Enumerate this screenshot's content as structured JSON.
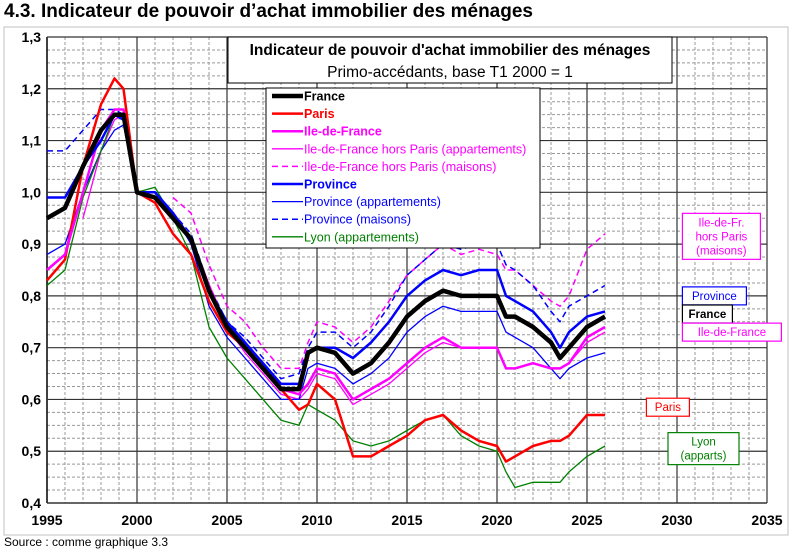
{
  "heading": "4.3. Indicateur de pouvoir d’achat immobilier des ménages",
  "source": "Source : comme graphique 3.3",
  "chart_data": {
    "type": "line",
    "title": "Indicateur de pouvoir d'achat immobilier des ménages",
    "subtitle": "Primo-accédants, base T1 2000 = 1",
    "xlim": [
      1995,
      2035
    ],
    "ylim": [
      0.4,
      1.3
    ],
    "xticks": [
      1995,
      2000,
      2005,
      2010,
      2015,
      2020,
      2025,
      2030,
      2035
    ],
    "yticks": [
      "0,4",
      "0,5",
      "0,6",
      "0,7",
      "0,8",
      "0,9",
      "1,0",
      "1,1",
      "1,2",
      "1,3"
    ],
    "grid": true,
    "legend_placement": "top-center",
    "x": [
      1995,
      1996,
      1997,
      1998,
      1998.75,
      1999.25,
      2000,
      2001,
      2002,
      2003,
      2004,
      2005,
      2006,
      2007,
      2008,
      2009,
      2009.5,
      2010,
      2011,
      2012,
      2013,
      2014,
      2015,
      2016,
      2017,
      2018,
      2019,
      2020,
      2020.5,
      2021,
      2022,
      2023,
      2023.5,
      2024,
      2025,
      2026
    ],
    "series": [
      {
        "name": "France",
        "color": "#000000",
        "style": "thick",
        "values": [
          0.95,
          0.97,
          1.05,
          1.12,
          1.15,
          1.15,
          1.0,
          0.99,
          0.95,
          0.91,
          0.81,
          0.74,
          0.7,
          0.66,
          0.62,
          0.62,
          0.69,
          0.7,
          0.69,
          0.65,
          0.67,
          0.71,
          0.76,
          0.79,
          0.81,
          0.8,
          0.8,
          0.8,
          0.76,
          0.76,
          0.74,
          0.71,
          0.68,
          0.7,
          0.74,
          0.76
        ]
      },
      {
        "name": "Paris",
        "color": "#ff0000",
        "style": "medium",
        "values": [
          0.83,
          0.87,
          1.05,
          1.17,
          1.22,
          1.2,
          1.0,
          0.98,
          0.92,
          0.88,
          0.79,
          0.73,
          0.7,
          0.66,
          0.62,
          0.58,
          0.59,
          0.63,
          0.6,
          0.49,
          0.49,
          0.51,
          0.53,
          0.56,
          0.57,
          0.54,
          0.52,
          0.51,
          0.48,
          0.49,
          0.51,
          0.52,
          0.52,
          0.53,
          0.57,
          0.57
        ]
      },
      {
        "name": "Ile-de-France",
        "color": "#ff00ff",
        "style": "medium",
        "values": [
          0.85,
          0.88,
          1.0,
          1.12,
          1.16,
          1.16,
          1.0,
          0.99,
          0.95,
          0.91,
          0.82,
          0.74,
          0.7,
          0.66,
          0.62,
          0.61,
          0.63,
          0.66,
          0.65,
          0.6,
          0.62,
          0.64,
          0.67,
          0.7,
          0.72,
          0.7,
          0.7,
          0.7,
          0.66,
          0.66,
          0.67,
          0.66,
          0.66,
          0.67,
          0.72,
          0.74
        ]
      },
      {
        "name": "Ile-de-France hors Paris (appartements)",
        "color": "#ff00ff",
        "style": "thin",
        "values": [
          null,
          null,
          0.95,
          1.08,
          1.14,
          1.15,
          1.0,
          0.99,
          0.95,
          0.91,
          0.82,
          0.74,
          0.69,
          0.65,
          0.61,
          0.6,
          0.62,
          0.65,
          0.64,
          0.59,
          0.61,
          0.63,
          0.66,
          0.69,
          0.71,
          0.7,
          0.7,
          0.7,
          0.66,
          0.66,
          0.67,
          0.66,
          0.66,
          0.67,
          0.71,
          0.73
        ]
      },
      {
        "name": "Ile-de-France hors Paris (maisons)",
        "color": "#ff00ff",
        "style": "dashed",
        "values": [
          null,
          null,
          null,
          null,
          null,
          null,
          null,
          null,
          0.99,
          0.96,
          0.86,
          0.78,
          0.75,
          0.7,
          0.66,
          0.66,
          0.71,
          0.75,
          0.74,
          0.71,
          0.74,
          0.79,
          0.84,
          0.87,
          0.9,
          0.88,
          0.89,
          0.88,
          0.85,
          0.85,
          0.82,
          0.79,
          0.78,
          0.8,
          0.89,
          0.92
        ]
      },
      {
        "name": "Province",
        "color": "#0000ff",
        "style": "medium",
        "values": [
          0.99,
          0.99,
          1.05,
          1.1,
          1.15,
          1.14,
          1.0,
          1.0,
          0.96,
          0.91,
          0.81,
          0.75,
          0.71,
          0.67,
          0.63,
          0.63,
          0.69,
          0.7,
          0.7,
          0.68,
          0.71,
          0.75,
          0.8,
          0.83,
          0.85,
          0.84,
          0.85,
          0.85,
          0.8,
          0.79,
          0.77,
          0.73,
          0.7,
          0.73,
          0.76,
          0.77
        ]
      },
      {
        "name": "Province (appartements)",
        "color": "#0000ff",
        "style": "thin",
        "values": [
          0.88,
          0.9,
          1.0,
          1.08,
          1.12,
          1.13,
          1.0,
          1.0,
          0.96,
          0.9,
          0.78,
          0.72,
          0.68,
          0.64,
          0.6,
          0.6,
          0.66,
          0.67,
          0.66,
          0.63,
          0.65,
          0.68,
          0.73,
          0.76,
          0.78,
          0.77,
          0.77,
          0.77,
          0.73,
          0.72,
          0.7,
          0.66,
          0.64,
          0.66,
          0.68,
          0.69
        ]
      },
      {
        "name": "Province (maisons)",
        "color": "#0000ff",
        "style": "dashed",
        "values": [
          1.08,
          1.08,
          1.12,
          1.16,
          1.16,
          1.15,
          1.0,
          1.0,
          0.96,
          0.92,
          0.82,
          0.75,
          0.72,
          0.68,
          0.64,
          0.65,
          0.7,
          0.73,
          0.73,
          0.7,
          0.73,
          0.78,
          0.84,
          0.87,
          0.9,
          0.89,
          0.9,
          0.9,
          0.86,
          0.85,
          0.82,
          0.77,
          0.75,
          0.78,
          0.8,
          0.82
        ]
      },
      {
        "name": "Lyon (appartements)",
        "color": "#008000",
        "style": "thin",
        "values": [
          0.82,
          0.85,
          0.99,
          1.08,
          1.15,
          1.14,
          1.0,
          1.01,
          0.95,
          0.88,
          0.74,
          0.68,
          0.64,
          0.6,
          0.56,
          0.55,
          0.59,
          0.58,
          0.56,
          0.52,
          0.51,
          0.52,
          0.54,
          0.56,
          0.57,
          0.53,
          0.51,
          0.5,
          0.46,
          0.43,
          0.44,
          0.44,
          0.44,
          0.46,
          0.49,
          0.51
        ]
      }
    ],
    "annotations": [
      {
        "lines": [
          "Ile-de-Fr.",
          "hors Paris",
          "(maisons)"
        ],
        "color": "#ff00ff",
        "bold": false,
        "at": [
          2030.3,
          0.915
        ]
      },
      {
        "lines": [
          "Province"
        ],
        "color": "#0000ff",
        "bold": false,
        "at": [
          2030.3,
          0.8
        ]
      },
      {
        "lines": [
          "France"
        ],
        "color": "#000000",
        "bold": true,
        "at": [
          2030.3,
          0.765
        ]
      },
      {
        "lines": [
          "Ile-de-France"
        ],
        "color": "#ff00ff",
        "bold": false,
        "at": [
          2030.3,
          0.73
        ]
      },
      {
        "lines": [
          "Paris"
        ],
        "color": "#ff0000",
        "bold": false,
        "at": [
          2028.3,
          0.585
        ]
      },
      {
        "lines": [
          "Lyon",
          "(apparts)"
        ],
        "color": "#008000",
        "bold": false,
        "at": [
          2029.5,
          0.505
        ]
      }
    ]
  }
}
